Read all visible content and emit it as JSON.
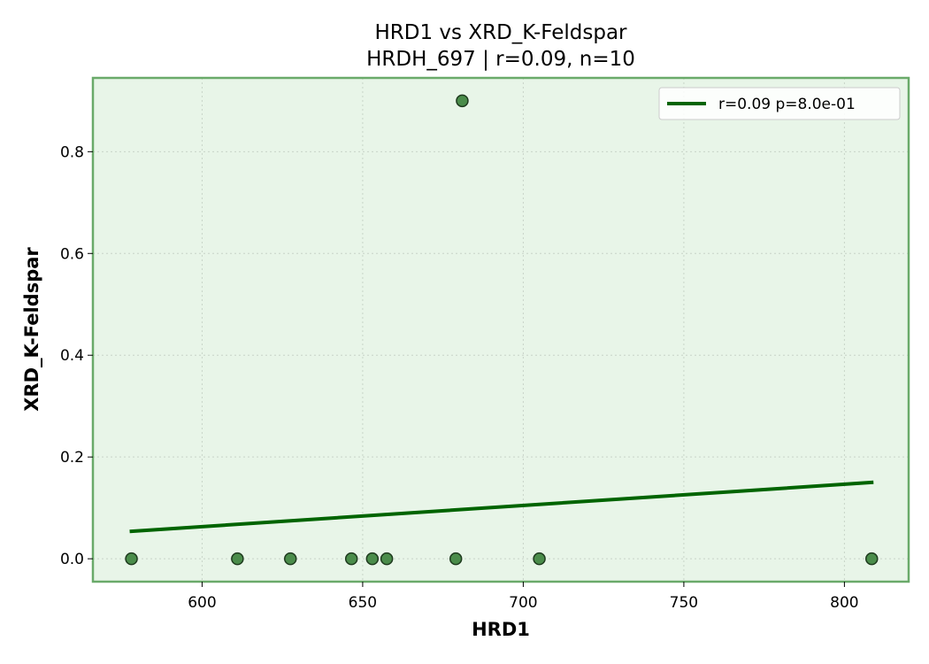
{
  "chart_data": {
    "type": "scatter",
    "title": "HRD1 vs XRD_K-Feldspar",
    "subtitle": "HRDH_697 | r=0.09, n=10",
    "xlabel": "HRD1",
    "ylabel": "XRD_K-Feldspar",
    "xlim": [
      566,
      820
    ],
    "ylim": [
      -0.045,
      0.945
    ],
    "xticks": [
      600,
      650,
      700,
      750,
      800
    ],
    "yticks": [
      0.0,
      0.2,
      0.4,
      0.6,
      0.8
    ],
    "xtick_labels": [
      "600",
      "650",
      "700",
      "750",
      "800"
    ],
    "ytick_labels": [
      "0.0",
      "0.2",
      "0.4",
      "0.6",
      "0.8"
    ],
    "grid": true,
    "legend_position": "top-right",
    "points": [
      {
        "x": 578,
        "y": 0.0
      },
      {
        "x": 611,
        "y": 0.0
      },
      {
        "x": 627.5,
        "y": 0.0
      },
      {
        "x": 646.5,
        "y": 0.0
      },
      {
        "x": 653,
        "y": 0.0
      },
      {
        "x": 657.5,
        "y": 0.0
      },
      {
        "x": 679,
        "y": 0.0
      },
      {
        "x": 681,
        "y": 0.9
      },
      {
        "x": 705,
        "y": 0.0
      },
      {
        "x": 808.5,
        "y": 0.0
      }
    ],
    "fit_line": {
      "label": "r=0.09  p=8.0e-01",
      "x": [
        578,
        808.5
      ],
      "y": [
        0.054,
        0.15
      ]
    },
    "colors": {
      "background": "#e8f5e8",
      "frame": "#6aaa6a",
      "marker_fill": "#4a8c4a",
      "marker_edge": "#1e3a1e",
      "fit_line": "#006400",
      "grid": "#c8d4c8"
    }
  }
}
